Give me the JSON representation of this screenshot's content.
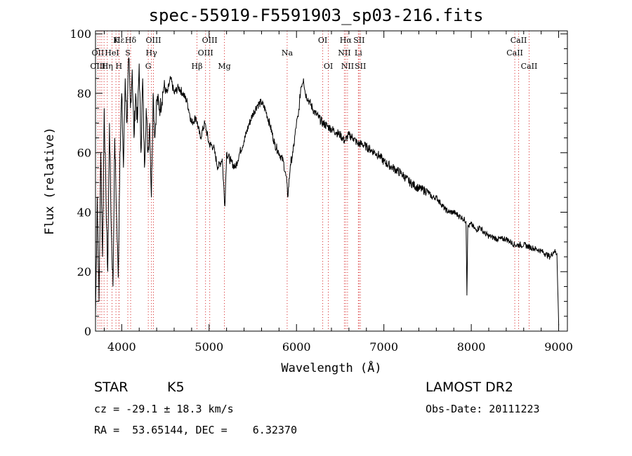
{
  "chart_data": {
    "type": "line",
    "title": "spec-55919-F5591903_sp03-216.fits",
    "xlabel": "Wavelength (Å)",
    "ylabel": "Flux (relative)",
    "xlim": [
      3700,
      9100
    ],
    "ylim": [
      0,
      101
    ],
    "xticks": [
      4000,
      5000,
      6000,
      7000,
      8000,
      9000
    ],
    "yticks": [
      0,
      20,
      40,
      60,
      80,
      100
    ],
    "grid": false,
    "series": [
      {
        "x": [
          3700,
          3720,
          3740,
          3760,
          3780,
          3800,
          3820,
          3840,
          3860,
          3880,
          3900,
          3920,
          3940,
          3960,
          3980,
          4000,
          4020,
          4040,
          4060,
          4080,
          4100,
          4120,
          4140,
          4160,
          4180,
          4200,
          4220,
          4240,
          4260,
          4280,
          4300,
          4320,
          4340,
          4360,
          4380,
          4400,
          4440,
          4480,
          4520,
          4560,
          4600,
          4650,
          4700,
          4750,
          4800,
          4850,
          4900,
          4950,
          5000,
          5050,
          5100,
          5150,
          5180,
          5200,
          5250,
          5300,
          5350,
          5400,
          5450,
          5500,
          5550,
          5600,
          5650,
          5700,
          5750,
          5800,
          5850,
          5890,
          5900,
          5930,
          5960,
          6000,
          6020,
          6050,
          6080,
          6100,
          6150,
          6200,
          6250,
          6300,
          6350,
          6400,
          6450,
          6500,
          6550,
          6600,
          6650,
          6700,
          6750,
          6800,
          6850,
          6900,
          6950,
          7000,
          7100,
          7200,
          7300,
          7400,
          7500,
          7550,
          7600,
          7650,
          7700,
          7750,
          7800,
          7850,
          7900,
          7940,
          7950,
          7960,
          8000,
          8050,
          8100,
          8150,
          8200,
          8300,
          8400,
          8500,
          8600,
          8700,
          8800,
          8850,
          8900,
          8950,
          8980,
          9000
        ],
        "y": [
          5,
          45,
          10,
          60,
          25,
          75,
          45,
          20,
          70,
          35,
          15,
          65,
          40,
          18,
          60,
          80,
          55,
          85,
          70,
          92,
          75,
          88,
          65,
          80,
          70,
          90,
          60,
          85,
          55,
          75,
          60,
          70,
          45,
          80,
          65,
          78,
          75,
          82,
          80,
          85,
          80,
          82,
          80,
          77,
          70,
          72,
          65,
          70,
          63,
          62,
          55,
          58,
          42,
          60,
          57,
          55,
          60,
          64,
          69,
          73,
          76,
          77,
          74,
          69,
          63,
          60,
          57,
          50,
          45,
          56,
          60,
          70,
          72,
          82,
          85,
          80,
          77,
          74,
          72,
          70,
          69,
          68,
          67,
          66,
          64,
          66,
          65,
          63,
          63,
          62,
          61,
          60,
          59,
          57,
          55,
          53,
          50,
          48,
          47,
          45,
          45,
          43,
          41,
          40,
          40,
          39,
          38,
          37,
          12,
          35,
          36,
          34,
          35,
          33,
          32,
          31,
          31,
          29,
          29,
          28,
          27,
          26,
          25,
          27,
          26,
          2
        ]
      }
    ],
    "annotations": [
      {
        "label": "Hε",
        "x": 3970,
        "row": 0
      },
      {
        "label": "K",
        "x": 3934,
        "row": 0
      },
      {
        "label": "Hδ",
        "x": 4102,
        "row": 0
      },
      {
        "label": "OIII",
        "x": 4363,
        "row": 0
      },
      {
        "label": "OIII",
        "x": 5007,
        "row": 0
      },
      {
        "label": "OI",
        "x": 6300,
        "row": 0
      },
      {
        "label": "Hα",
        "x": 6563,
        "row": 0
      },
      {
        "label": "SII",
        "x": 6716,
        "row": 0
      },
      {
        "label": "CaII",
        "x": 8542,
        "row": 0
      },
      {
        "label": "OII",
        "x": 3727,
        "row": 1
      },
      {
        "label": "HeI",
        "x": 3889,
        "row": 1
      },
      {
        "label": "S",
        "x": 4070,
        "row": 1
      },
      {
        "label": "Hγ",
        "x": 4340,
        "row": 1
      },
      {
        "label": "OIII",
        "x": 4959,
        "row": 1
      },
      {
        "label": "Na",
        "x": 5893,
        "row": 1
      },
      {
        "label": "NII",
        "x": 6548,
        "row": 1
      },
      {
        "label": "Li",
        "x": 6708,
        "row": 1
      },
      {
        "label": "CaII",
        "x": 8498,
        "row": 1
      },
      {
        "label": "OIII",
        "x": 3727,
        "row": 2
      },
      {
        "label": "Hη",
        "x": 3835,
        "row": 2
      },
      {
        "label": "H",
        "x": 3968,
        "row": 2
      },
      {
        "label": "G",
        "x": 4304,
        "row": 2
      },
      {
        "label": "Hβ",
        "x": 4861,
        "row": 2
      },
      {
        "label": "Mg",
        "x": 5175,
        "row": 2
      },
      {
        "label": "OI",
        "x": 6364,
        "row": 2
      },
      {
        "label": "NII",
        "x": 6584,
        "row": 2
      },
      {
        "label": "SII",
        "x": 6731,
        "row": 2
      },
      {
        "label": "CaII",
        "x": 8662,
        "row": 2
      }
    ],
    "line_markers": [
      3727,
      3750,
      3771,
      3798,
      3835,
      3889,
      3934,
      3968,
      3970,
      4070,
      4102,
      4304,
      4340,
      4363,
      4861,
      4959,
      5007,
      5175,
      5893,
      6300,
      6364,
      6548,
      6563,
      6584,
      6708,
      6716,
      6731,
      8498,
      8542,
      8662
    ]
  },
  "info": {
    "class": "STAR",
    "subclass": "K5",
    "survey": "LAMOST DR2",
    "cz": "cz = -29.1 ± 18.3 km/s",
    "obsdate": "Obs-Date: 20111223",
    "radec": "RA =  53.65144, DEC =    6.32370"
  },
  "colors": {
    "axis": "#000000",
    "spectrum": "#000000",
    "markers": "#d62728"
  }
}
